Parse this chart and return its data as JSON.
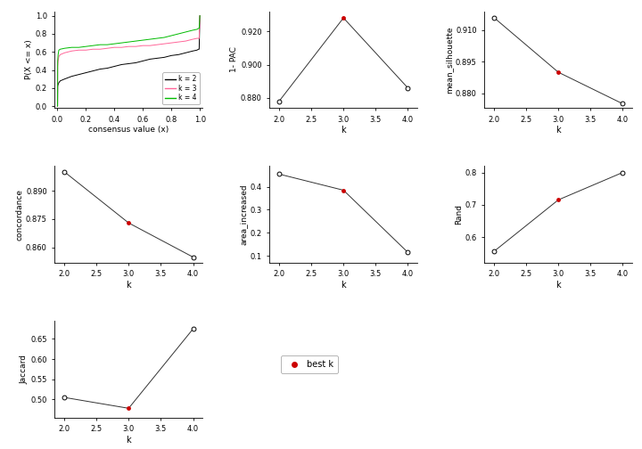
{
  "ecdf": {
    "k2": {
      "color": "#000000"
    },
    "k3": {
      "color": "#FF6699"
    },
    "k4": {
      "color": "#00BB00"
    }
  },
  "pac": {
    "k": [
      2,
      3,
      4
    ],
    "v": [
      0.878,
      0.928,
      0.886
    ],
    "best_k": 3,
    "ylabel": "1- PAC",
    "yticks": [
      0.88,
      0.9,
      0.92
    ],
    "ylim": [
      0.874,
      0.932
    ]
  },
  "silhouette": {
    "k": [
      2,
      3,
      4
    ],
    "v": [
      0.916,
      0.89,
      0.875
    ],
    "best_k": 3,
    "ylabel": "mean_silhouette",
    "yticks": [
      0.88,
      0.895,
      0.91
    ],
    "ylim": [
      0.873,
      0.919
    ]
  },
  "concordance": {
    "k": [
      2,
      3,
      4
    ],
    "v": [
      0.9,
      0.873,
      0.855
    ],
    "best_k": 3,
    "ylabel": "concordance",
    "yticks": [
      0.86,
      0.875,
      0.89
    ],
    "ylim": [
      0.852,
      0.903
    ]
  },
  "area_increased": {
    "k": [
      2,
      3,
      4
    ],
    "v": [
      0.455,
      0.385,
      0.115
    ],
    "best_k": 3,
    "ylabel": "area_increased",
    "yticks": [
      0.1,
      0.2,
      0.3,
      0.4
    ],
    "ylim": [
      0.07,
      0.49
    ]
  },
  "rand": {
    "k": [
      2,
      3,
      4
    ],
    "v": [
      0.555,
      0.715,
      0.8
    ],
    "best_k": 3,
    "ylabel": "Rand",
    "yticks": [
      0.6,
      0.7,
      0.8
    ],
    "ylim": [
      0.52,
      0.82
    ]
  },
  "jaccard": {
    "k": [
      2,
      3,
      4
    ],
    "v": [
      0.505,
      0.478,
      0.675
    ],
    "best_k": 3,
    "ylabel": "Jaccard",
    "yticks": [
      0.5,
      0.55,
      0.6,
      0.65
    ],
    "ylim": [
      0.455,
      0.695
    ]
  },
  "bg_color": "#FFFFFF",
  "line_color": "#333333",
  "best_color": "#CC0000",
  "open_color": "#000000",
  "ecdf_legend": [
    {
      "label": "k = 2",
      "color": "#000000"
    },
    {
      "label": "k = 3",
      "color": "#FF6699"
    },
    {
      "label": "k = 4",
      "color": "#00BB00"
    }
  ]
}
